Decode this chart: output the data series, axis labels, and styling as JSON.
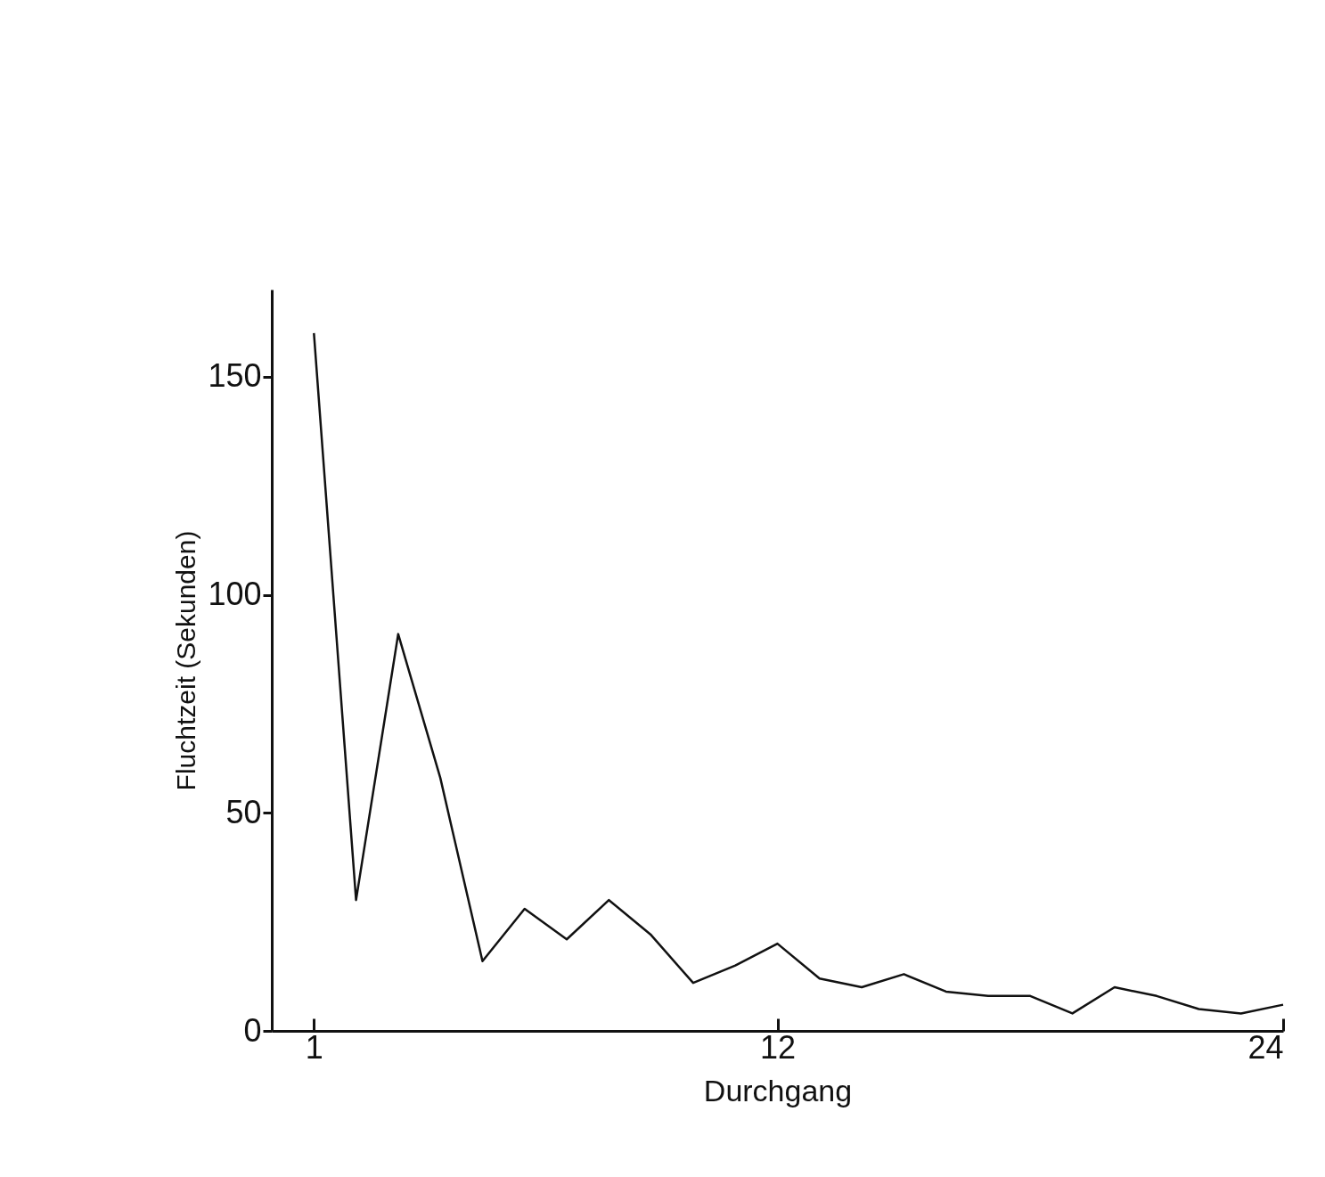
{
  "chart_data": {
    "type": "line",
    "xlabel": "Durchgang",
    "ylabel": "Fluchtzeit (Sekunden)",
    "x": [
      1,
      2,
      3,
      4,
      5,
      6,
      7,
      8,
      9,
      10,
      11,
      12,
      13,
      14,
      15,
      16,
      17,
      18,
      19,
      20,
      21,
      22,
      23,
      24
    ],
    "series": [
      {
        "color": "#111111",
        "values": [
          160,
          30,
          91,
          58,
          16,
          28,
          21,
          30,
          22,
          11,
          15,
          20,
          12,
          10,
          13,
          9,
          8,
          8,
          4,
          10,
          8,
          5,
          4,
          6
        ]
      }
    ],
    "xlim": [
      0,
      24
    ],
    "xticks": [
      1,
      12,
      24
    ],
    "ylim": [
      0,
      170
    ],
    "yticks": [
      0,
      50,
      100,
      150
    ],
    "grid": false,
    "legend": false,
    "marker": "none",
    "line_style": "solid"
  }
}
